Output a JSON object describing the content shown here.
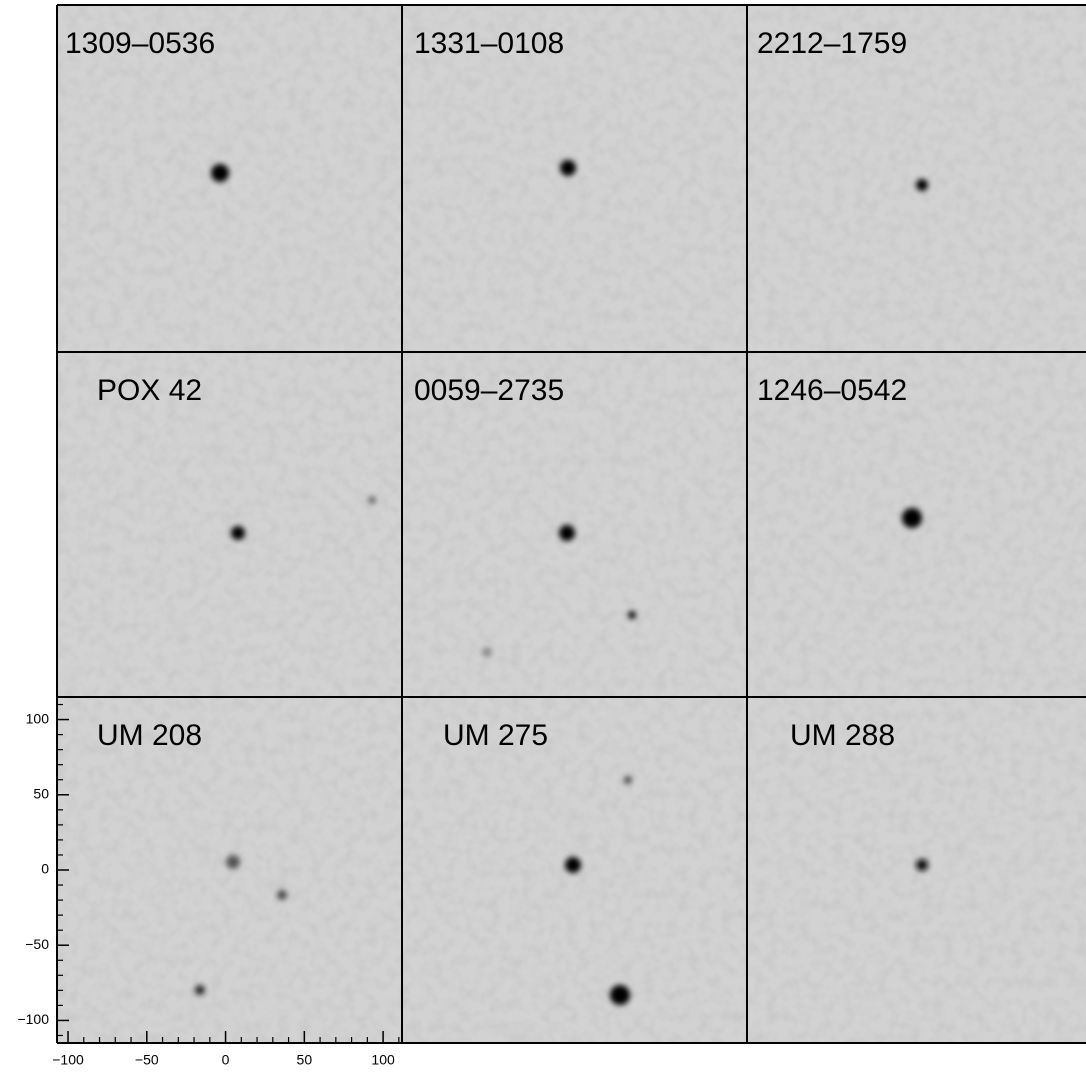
{
  "chart_data": {
    "type": "image_grid",
    "panels": [
      "1309–0536",
      "1331–0108",
      "2212–1759",
      "POX 42",
      "0059–2735",
      "1246–0542",
      "UM 208",
      "UM 275",
      "UM 288"
    ],
    "xlim": [
      -107,
      112
    ],
    "ylim": [
      -115,
      115
    ],
    "xticks": [
      {
        "value": -100,
        "label": "−100"
      },
      {
        "value": -50,
        "label": "−50"
      },
      0,
      50,
      100
    ],
    "yticks": [
      {
        "value": -100,
        "label": "−100"
      },
      {
        "value": -50,
        "label": "−50"
      },
      0,
      50,
      100
    ]
  }
}
